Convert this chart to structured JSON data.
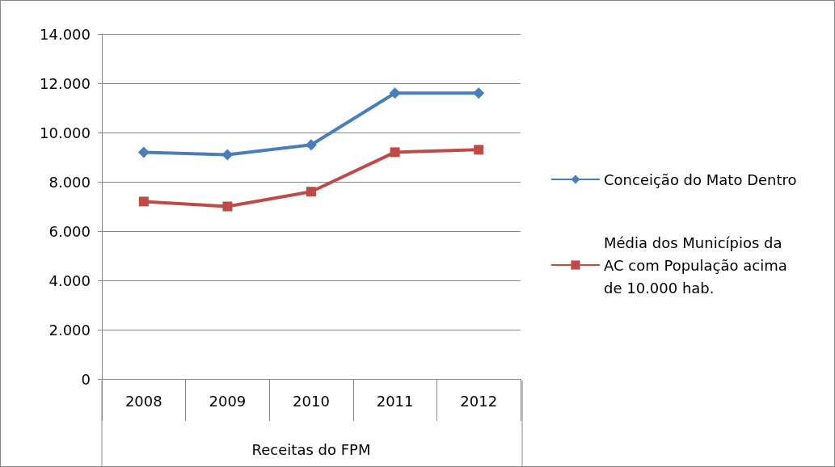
{
  "chart_data": {
    "type": "line",
    "xlabel": "Receitas do FPM",
    "categories": [
      "2008",
      "2009",
      "2010",
      "2011",
      "2012"
    ],
    "series": [
      {
        "name": "Conceição do Mato Dentro",
        "color": "#4a7ebb",
        "marker": "diamond",
        "values": [
          9200,
          9100,
          9500,
          11600,
          11600
        ]
      },
      {
        "name": "Média dos Municípios da AC com População acima de 10.000 hab.",
        "color": "#be4b48",
        "marker": "square",
        "values": [
          7200,
          7000,
          7600,
          9200,
          9300
        ]
      }
    ],
    "ylim": [
      0,
      14000
    ],
    "yticks": [
      {
        "value": 0,
        "label": "0"
      },
      {
        "value": 2000,
        "label": "2.000"
      },
      {
        "value": 4000,
        "label": "4.000"
      },
      {
        "value": 6000,
        "label": "6.000"
      },
      {
        "value": 8000,
        "label": "8.000"
      },
      {
        "value": 10000,
        "label": "10.000"
      },
      {
        "value": 12000,
        "label": "12.000"
      },
      {
        "value": 14000,
        "label": "14.000"
      }
    ],
    "grid": "y",
    "legend": "right"
  }
}
